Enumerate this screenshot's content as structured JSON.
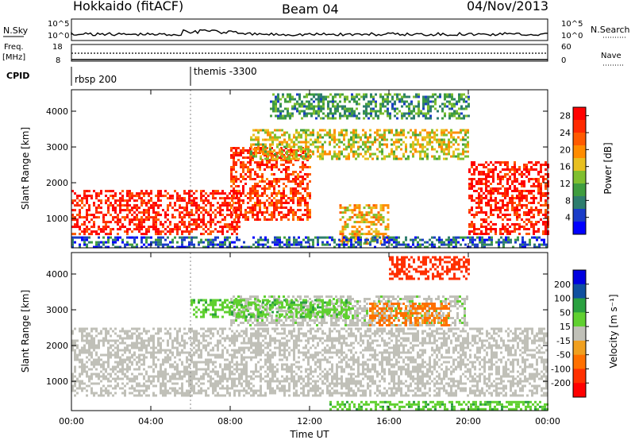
{
  "header": {
    "station": "Hokkaido (fitACF)",
    "beam": "Beam 04",
    "date": "04/Nov/2013"
  },
  "aux_panels": {
    "nsky_label": "N.Sky",
    "nsky_ticks": [
      "10^5",
      "10^0"
    ],
    "nsearch_label": "N.Search",
    "freq_label_1": "Freq.",
    "freq_label_2": "[MHz]",
    "freq_ticks": [
      "18",
      "8"
    ],
    "nave_label": "Nave",
    "nave_ticks": [
      "60",
      "0"
    ],
    "cpid_label": "CPID",
    "cpid_segments": [
      {
        "name": "rbsp 200",
        "start_hour": 0
      },
      {
        "name": "themis -3300",
        "start_hour": 6
      }
    ]
  },
  "chart_data": [
    {
      "type": "heatmap",
      "title": "",
      "xlabel": "Time UT",
      "ylabel": "Slant Range [km]",
      "xlim": [
        0,
        24
      ],
      "ylim": [
        180,
        4600
      ],
      "x_ticks": [
        "00:00",
        "04:00",
        "08:00",
        "12:00",
        "16:00",
        "20:00",
        "00:00"
      ],
      "y_ticks": [
        1000,
        2000,
        3000,
        4000
      ],
      "colorbar": {
        "label": "Power [dB]",
        "ticks": [
          4,
          8,
          12,
          16,
          20,
          24,
          28
        ],
        "range": [
          0,
          30
        ],
        "colors": [
          "#0000ff",
          "#1a3cc8",
          "#2e7d6e",
          "#3f9d3f",
          "#7fbf2f",
          "#e8c020",
          "#ff8c00",
          "#ff5a00",
          "#ff2a00",
          "#ff0000"
        ]
      },
      "regions": [
        {
          "name": "near-range evening echo",
          "t": [
            0,
            8.5
          ],
          "r": [
            600,
            1800
          ],
          "value": 27
        },
        {
          "name": "rising band",
          "t": [
            8,
            12
          ],
          "r": [
            1000,
            3000
          ],
          "value": 25
        },
        {
          "name": "F-region band",
          "t": [
            9,
            20
          ],
          "r": [
            2700,
            3500
          ],
          "value": 16
        },
        {
          "name": "post-midnight band",
          "t": [
            13.5,
            16
          ],
          "r": [
            300,
            1400
          ],
          "value": 18
        },
        {
          "name": "morning echo",
          "t": [
            20,
            24
          ],
          "r": [
            600,
            2600
          ],
          "value": 27
        },
        {
          "name": "far-range patches",
          "t": [
            10,
            20
          ],
          "r": [
            3800,
            4500
          ],
          "value": 10
        },
        {
          "name": "ground scatter floor",
          "t": [
            0,
            24
          ],
          "r": [
            200,
            500
          ],
          "value": 6
        }
      ]
    },
    {
      "type": "heatmap",
      "title": "",
      "xlabel": "Time UT",
      "ylabel": "Slant Range [km]",
      "xlim": [
        0,
        24
      ],
      "ylim": [
        180,
        4600
      ],
      "x_ticks": [
        "00:00",
        "04:00",
        "08:00",
        "12:00",
        "16:00",
        "20:00",
        "00:00"
      ],
      "y_ticks": [
        1000,
        2000,
        3000,
        4000
      ],
      "colorbar": {
        "label": "Velocity [m s⁻¹]",
        "ticks": [
          200,
          100,
          50,
          15,
          -15,
          -50,
          -100,
          -200
        ],
        "colors": [
          "#0000e0",
          "#1050a0",
          "#2aa040",
          "#60d030",
          "#c0c0b8",
          "#f0a020",
          "#ff7000",
          "#ff3000",
          "#ff0000"
        ]
      },
      "regions": [
        {
          "name": "ground scatter",
          "t": [
            0,
            24
          ],
          "r": [
            600,
            2500
          ],
          "value": 0
        },
        {
          "name": "F-region band",
          "t": [
            8,
            20
          ],
          "r": [
            2600,
            3400
          ],
          "value": 5
        },
        {
          "name": "green patches",
          "t": [
            6,
            14
          ],
          "r": [
            2800,
            3300
          ],
          "value": 40
        },
        {
          "name": "orange patches",
          "t": [
            15,
            19
          ],
          "r": [
            2600,
            3200
          ],
          "value": -60
        },
        {
          "name": "red far-range",
          "t": [
            16,
            20
          ],
          "r": [
            3900,
            4500
          ],
          "value": -180
        },
        {
          "name": "near-range green",
          "t": [
            13,
            24
          ],
          "r": [
            250,
            450
          ],
          "value": 40
        }
      ]
    }
  ]
}
